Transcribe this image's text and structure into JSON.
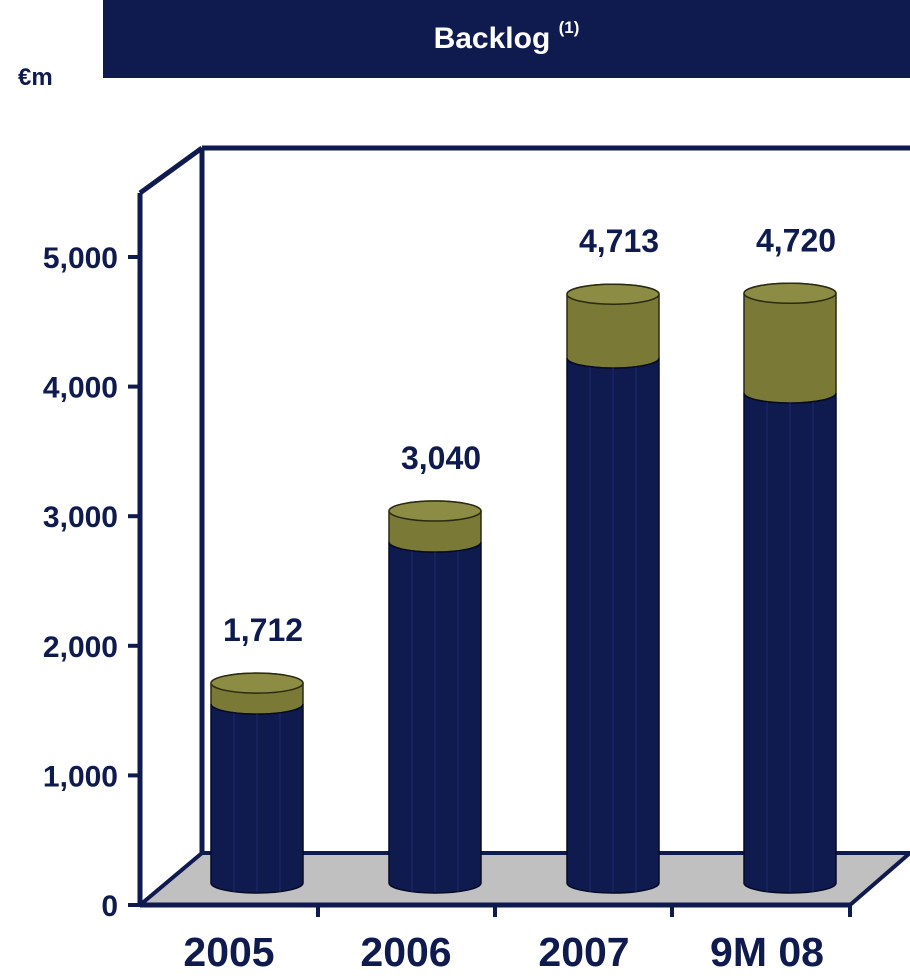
{
  "header": {
    "title": "Backlog",
    "note": "(1)",
    "unit": "€m"
  },
  "chart_data": {
    "type": "bar",
    "title": "Backlog (1)",
    "ylabel": "€m",
    "categories": [
      "2005",
      "2006",
      "2007",
      "9M 08"
    ],
    "totals": [
      1712,
      3040,
      4713,
      4720
    ],
    "total_labels": [
      "1,712",
      "3,040",
      "4,713",
      "4,720"
    ],
    "series": [
      {
        "values": [
          1550,
          2800,
          4220,
          3950
        ]
      },
      {
        "values": [
          162,
          240,
          493,
          770
        ]
      }
    ],
    "ylim": [
      0,
      5500
    ],
    "yticks": [
      0,
      1000,
      2000,
      3000,
      4000,
      5000
    ],
    "ytick_labels": [
      "0",
      "1,000",
      "2,000",
      "3,000",
      "4,000",
      "5,000"
    ],
    "grid": false,
    "legend": "none",
    "colors": {
      "base": "#0f1a4f",
      "top": "#7a7a36",
      "floor": "#c0c0c0",
      "axis": "#0f1a4f"
    }
  }
}
